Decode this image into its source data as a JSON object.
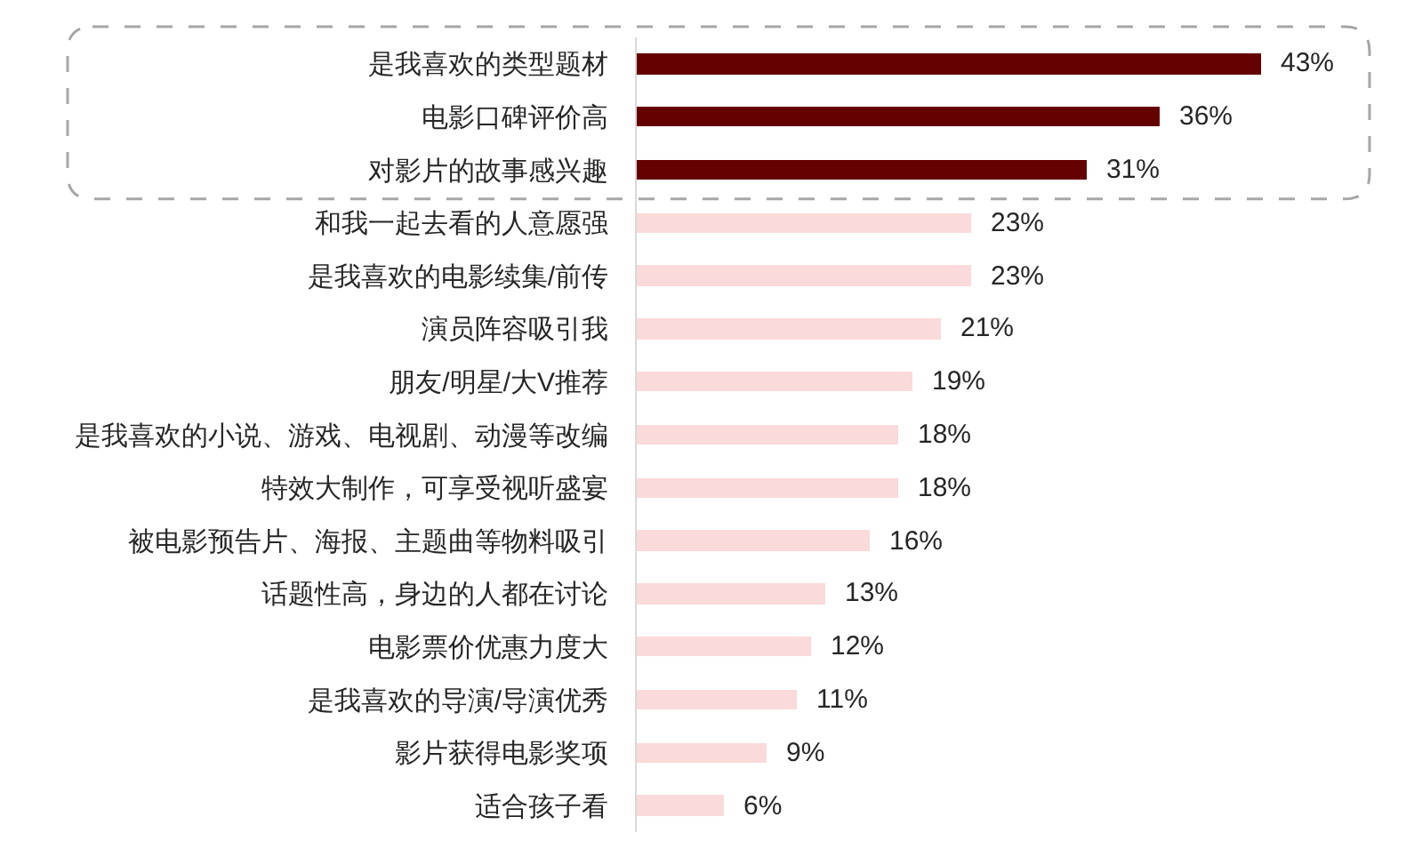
{
  "chart_data": {
    "type": "bar",
    "orientation": "horizontal",
    "categories": [
      "是我喜欢的类型题材",
      "电影口碑评价高",
      "对影片的故事感兴趣",
      "和我一起去看的人意愿强",
      "是我喜欢的电影续集/前传",
      "演员阵容吸引我",
      "朋友/明星/大V推荐",
      "是我喜欢的小说、游戏、电视剧、动漫等改编",
      "特效大制作，可享受视听盛宴",
      "被电影预告片、海报、主题曲等物料吸引",
      "话题性高，身边的人都在讨论",
      "电影票价优惠力度大",
      "是我喜欢的导演/导演优秀",
      "影片获得电影奖项",
      "适合孩子看"
    ],
    "values": [
      43,
      36,
      31,
      23,
      23,
      21,
      19,
      18,
      18,
      16,
      13,
      12,
      11,
      9,
      6
    ],
    "colors": [
      "#650000",
      "#650000",
      "#650000",
      "#fadadb",
      "#fadadb",
      "#fadadb",
      "#fadadb",
      "#fadadb",
      "#fadadb",
      "#fadadb",
      "#fadadb",
      "#fadadb",
      "#fadadb",
      "#fadadb",
      "#fadadb"
    ],
    "value_labels": [
      "43%",
      "36%",
      "31%",
      "23%",
      "23%",
      "21%",
      "19%",
      "18%",
      "18%",
      "16%",
      "13%",
      "12%",
      "11%",
      "9%",
      "6%"
    ],
    "grid": false,
    "tick_labels": "y"
  }
}
